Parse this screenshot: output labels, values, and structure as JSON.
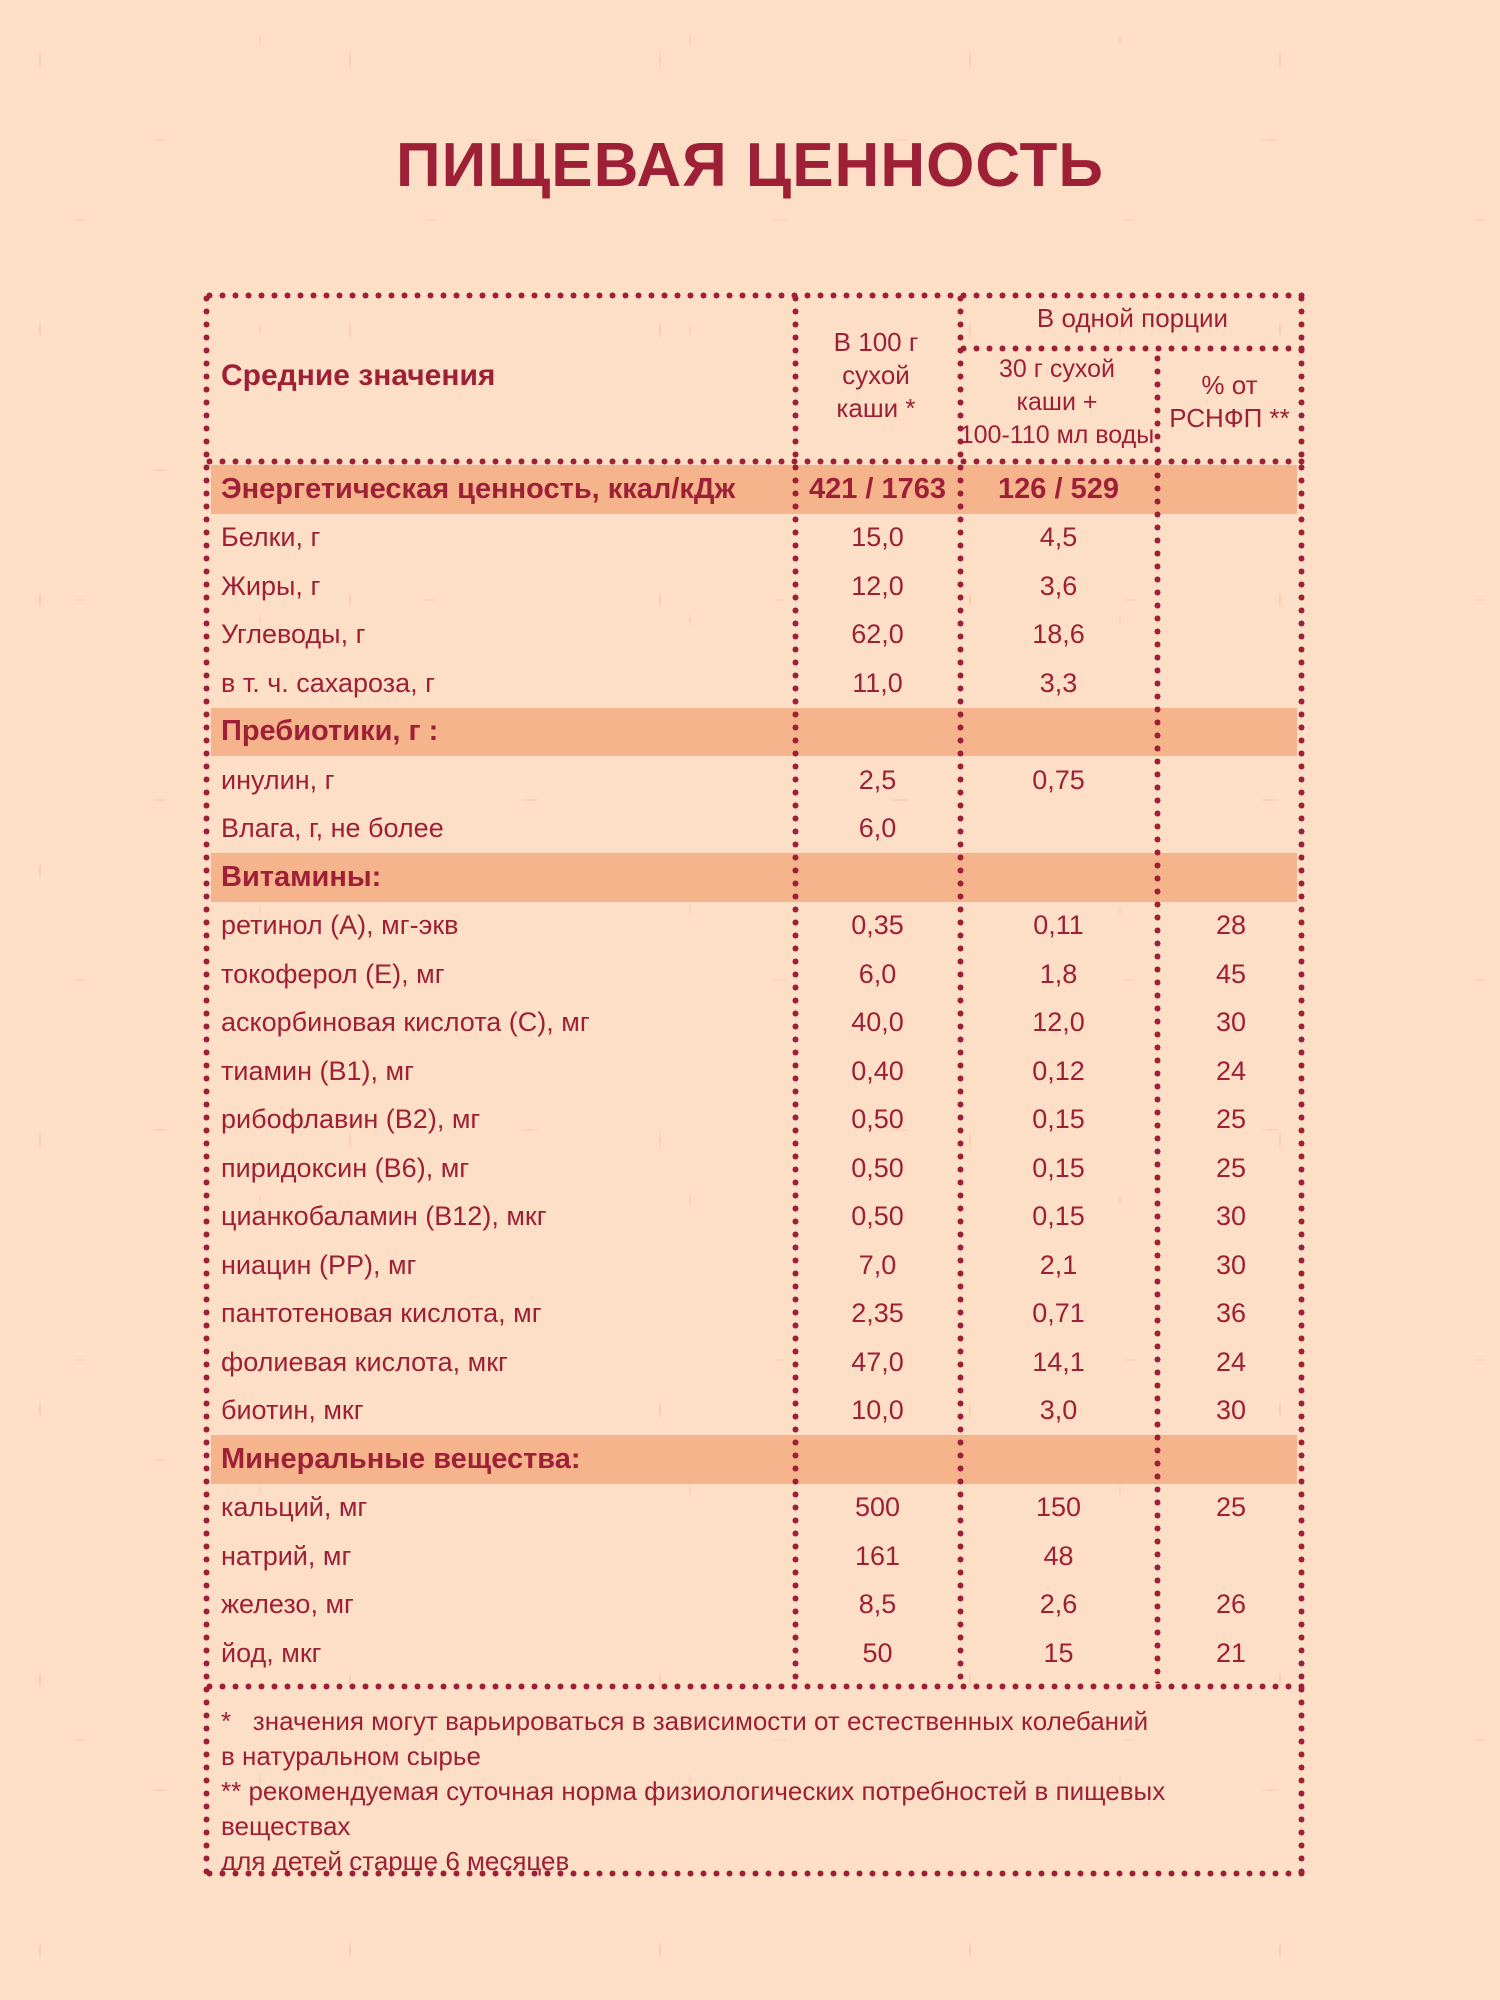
{
  "page": {
    "title": "ПИЩЕВАЯ ЦЕННОСТЬ",
    "colors": {
      "accent_red": "#9e2037",
      "section_highlight": "#f6b48c",
      "paper_background": "#fcdfc6"
    }
  },
  "table": {
    "header": {
      "col1": "Средние значения",
      "col2": "В 100 г\nсухой\nкаши *",
      "serving_group": "В одной порции",
      "col3": "30 г сухой\nкаши +\n100-110 мл воды",
      "col4": "% от\nРСНФП **"
    },
    "rows": [
      {
        "label": "Энергетическая ценность, ккал/кДж",
        "per100": "421 / 1763",
        "portion": "126 / 529",
        "pct": "",
        "section": true
      },
      {
        "label": "Белки, г",
        "per100": "15,0",
        "portion": "4,5",
        "pct": "",
        "section": false
      },
      {
        "label": "Жиры, г",
        "per100": "12,0",
        "portion": "3,6",
        "pct": "",
        "section": false
      },
      {
        "label": "Углеводы, г",
        "per100": "62,0",
        "portion": "18,6",
        "pct": "",
        "section": false
      },
      {
        "label": "в т. ч. сахароза, г",
        "per100": "11,0",
        "portion": "3,3",
        "pct": "",
        "section": false
      },
      {
        "label": "Пребиотики, г :",
        "per100": "",
        "portion": "",
        "pct": "",
        "section": true
      },
      {
        "label": "инулин, г",
        "per100": "2,5",
        "portion": "0,75",
        "pct": "",
        "section": false
      },
      {
        "label": "Влага, г, не более",
        "per100": "6,0",
        "portion": "",
        "pct": "",
        "section": false
      },
      {
        "label": "Витамины:",
        "per100": "",
        "portion": "",
        "pct": "",
        "section": true
      },
      {
        "label": "ретинол (А), мг-экв",
        "per100": "0,35",
        "portion": "0,11",
        "pct": "28",
        "section": false
      },
      {
        "label": "токоферол (Е), мг",
        "per100": "6,0",
        "portion": "1,8",
        "pct": "45",
        "section": false
      },
      {
        "label": "аскорбиновая кислота (С), мг",
        "per100": "40,0",
        "portion": "12,0",
        "pct": "30",
        "section": false
      },
      {
        "label": "тиамин (В1), мг",
        "per100": "0,40",
        "portion": "0,12",
        "pct": "24",
        "section": false
      },
      {
        "label": "рибофлавин (В2), мг",
        "per100": "0,50",
        "portion": "0,15",
        "pct": "25",
        "section": false
      },
      {
        "label": "пиридоксин (В6), мг",
        "per100": "0,50",
        "portion": "0,15",
        "pct": "25",
        "section": false
      },
      {
        "label": "цианкобаламин (В12), мкг",
        "per100": "0,50",
        "portion": "0,15",
        "pct": "30",
        "section": false
      },
      {
        "label": "ниацин (РР), мг",
        "per100": "7,0",
        "portion": "2,1",
        "pct": "30",
        "section": false
      },
      {
        "label": "пантотеновая кислота, мг",
        "per100": "2,35",
        "portion": "0,71",
        "pct": "36",
        "section": false
      },
      {
        "label": "фолиевая кислота, мкг",
        "per100": "47,0",
        "portion": "14,1",
        "pct": "24",
        "section": false
      },
      {
        "label": "биотин, мкг",
        "per100": "10,0",
        "portion": "3,0",
        "pct": "30",
        "section": false
      },
      {
        "label": "Минеральные вещества:",
        "per100": "",
        "portion": "",
        "pct": "",
        "section": true
      },
      {
        "label": "кальций, мг",
        "per100": "500",
        "portion": "150",
        "pct": "25",
        "section": false
      },
      {
        "label": "натрий, мг",
        "per100": "161",
        "portion": "48",
        "pct": "",
        "section": false
      },
      {
        "label": "железо, мг",
        "per100": "8,5",
        "portion": "2,6",
        "pct": "26",
        "section": false
      },
      {
        "label": "йод, мкг",
        "per100": "50",
        "portion": "15",
        "pct": "21",
        "section": false
      }
    ],
    "footnotes": "*   значения могут варьироваться в зависимости от естественных колебаний\nв натуральном сырье\n** рекомендуемая суточная норма физиологических потребностей в пищевых веществах\nдля детей старше 6 месяцев"
  }
}
